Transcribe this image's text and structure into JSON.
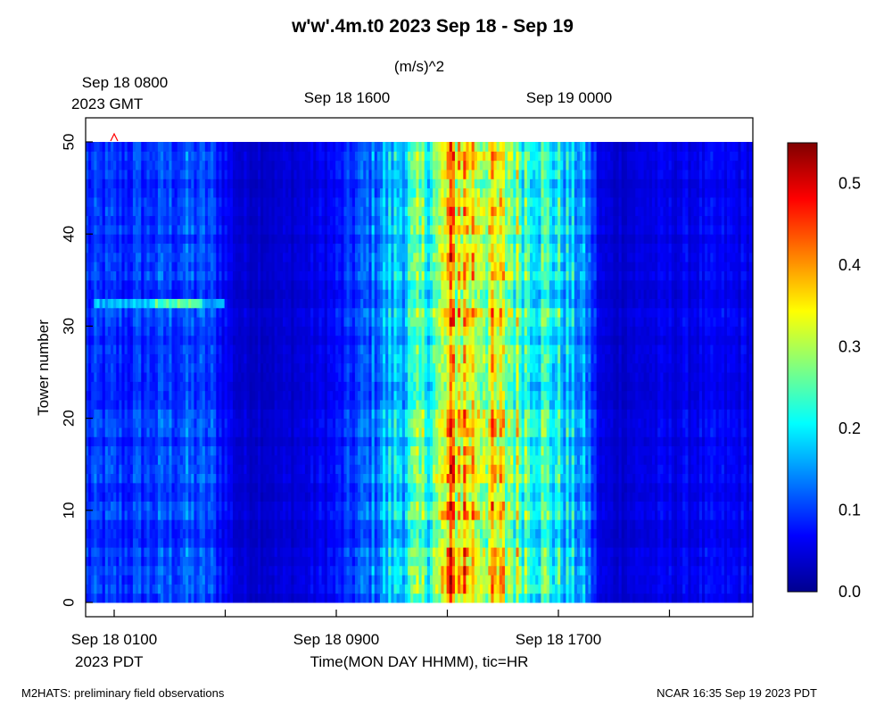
{
  "chart_data": {
    "type": "heatmap",
    "title": "w'w'.4m.t0 2023 Sep 18 - Sep 19",
    "units": "(m/s)^2",
    "ylabel": "Tower number",
    "xlabel": "Time(MON DAY HHMM), tic=HR",
    "ylim": [
      0,
      50
    ],
    "y_ticks": [
      "0",
      "10",
      "20",
      "30",
      "40",
      "50"
    ],
    "y_tick_values": [
      0,
      10,
      20,
      30,
      40,
      50
    ],
    "tower_count": 50,
    "time_range_hours": [
      0,
      24
    ],
    "top_axis": {
      "timezone_label": "2023 GMT",
      "labels": [
        "Sep 18 0800",
        "Sep 18 1600",
        "Sep 19 0000"
      ],
      "label_hours": [
        1,
        9,
        17
      ]
    },
    "bottom_axis": {
      "timezone_label": "2023 PDT",
      "labels": [
        "Sep 18 0100",
        "Sep 18 0900",
        "Sep 18 1700"
      ],
      "label_hours": [
        1,
        9,
        17
      ],
      "tick_hours": [
        1,
        5,
        9,
        13,
        17,
        21
      ]
    },
    "colorbar": {
      "range": [
        0,
        0.55
      ],
      "tick_labels": [
        "0.0",
        "0.1",
        "0.2",
        "0.3",
        "0.4",
        "0.5"
      ],
      "tick_values": [
        0,
        0.1,
        0.2,
        0.3,
        0.4,
        0.5
      ]
    },
    "marker": {
      "hour": 1,
      "tower": 50,
      "symbol": "^"
    },
    "time_profile": {
      "hours": [
        0,
        1.5,
        2.5,
        3.5,
        4.5,
        5,
        5.5,
        7,
        8,
        9,
        10,
        10.8,
        11.5,
        12.2,
        12.7,
        13.2,
        14,
        15,
        16,
        17,
        18,
        18.5,
        19,
        20,
        22,
        24
      ],
      "values": [
        0.09,
        0.09,
        0.1,
        0.11,
        0.1,
        0.07,
        0.04,
        0.04,
        0.05,
        0.07,
        0.11,
        0.16,
        0.2,
        0.24,
        0.27,
        0.38,
        0.35,
        0.3,
        0.25,
        0.2,
        0.14,
        0.05,
        0.04,
        0.05,
        0.06,
        0.06
      ]
    },
    "tower_band": {
      "tower": 33,
      "hour_range": [
        0.3,
        5
      ],
      "value": 0.17
    }
  },
  "footer": {
    "left": "M2HATS: preliminary field observations",
    "right": "NCAR 16:35 Sep 19 2023 PDT"
  }
}
